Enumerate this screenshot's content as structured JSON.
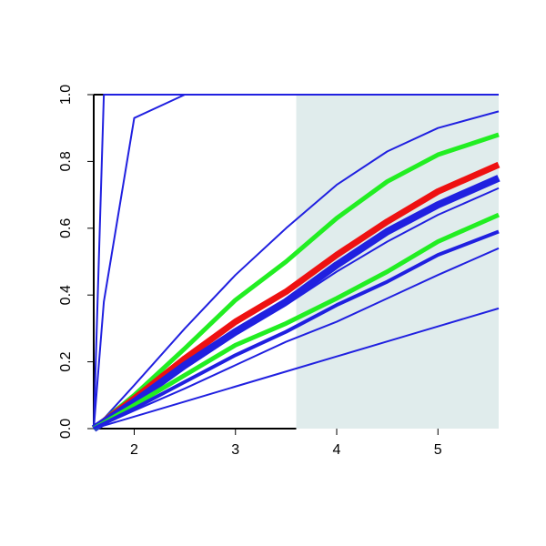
{
  "chart_data": {
    "type": "line",
    "x": [
      1.6,
      1.7,
      2,
      2.5,
      3,
      3.5,
      4,
      4.5,
      5,
      5.6
    ],
    "series": [
      {
        "color": "#2020e0",
        "width": 2,
        "values": [
          0,
          1,
          1,
          1,
          1,
          1,
          1,
          1,
          1,
          1
        ]
      },
      {
        "color": "#2020e0",
        "width": 2,
        "values": [
          0,
          0.38,
          0.93,
          1,
          1,
          1,
          1,
          1,
          1,
          1
        ]
      },
      {
        "color": "#2020e0",
        "width": 2,
        "values": [
          0,
          0.03,
          0.13,
          0.3,
          0.46,
          0.6,
          0.73,
          0.83,
          0.9,
          0.95
        ]
      },
      {
        "color": "#22ee22",
        "width": 5,
        "values": [
          0,
          0.025,
          0.1,
          0.24,
          0.385,
          0.5,
          0.63,
          0.74,
          0.82,
          0.88
        ]
      },
      {
        "color": "#ee1111",
        "width": 7,
        "values": [
          0,
          0.022,
          0.09,
          0.21,
          0.32,
          0.41,
          0.52,
          0.62,
          0.71,
          0.79
        ]
      },
      {
        "color": "#2020e0",
        "width": 8,
        "values": [
          0,
          0.02,
          0.08,
          0.19,
          0.29,
          0.38,
          0.49,
          0.59,
          0.67,
          0.75
        ]
      },
      {
        "color": "#2020e0",
        "width": 2,
        "values": [
          0,
          0.018,
          0.075,
          0.18,
          0.28,
          0.37,
          0.47,
          0.56,
          0.64,
          0.72
        ]
      },
      {
        "color": "#22ee22",
        "width": 5,
        "values": [
          0,
          0.017,
          0.07,
          0.16,
          0.25,
          0.315,
          0.39,
          0.47,
          0.56,
          0.64
        ]
      },
      {
        "color": "#2020e0",
        "width": 4,
        "values": [
          0,
          0.015,
          0.06,
          0.14,
          0.22,
          0.29,
          0.37,
          0.44,
          0.52,
          0.59
        ]
      },
      {
        "color": "#2020e0",
        "width": 2,
        "values": [
          0,
          0.013,
          0.054,
          0.12,
          0.19,
          0.26,
          0.32,
          0.39,
          0.46,
          0.54
        ]
      },
      {
        "color": "#2020e0",
        "width": 2,
        "values": [
          0,
          0.009,
          0.036,
          0.081,
          0.126,
          0.171,
          0.216,
          0.261,
          0.306,
          0.36
        ]
      }
    ],
    "shade": {
      "from": 3.6,
      "to": 5.6,
      "color": "#e0ecec"
    },
    "xlim": [
      1.6,
      5.6
    ],
    "xticks": [
      2,
      3,
      4,
      5
    ],
    "ylim": [
      0,
      1
    ],
    "yticks": [
      {
        "value": 0,
        "label": "0.0"
      },
      0.2,
      0.4,
      0.6,
      0.8,
      {
        "value": 1,
        "label": "1.0"
      }
    ]
  }
}
